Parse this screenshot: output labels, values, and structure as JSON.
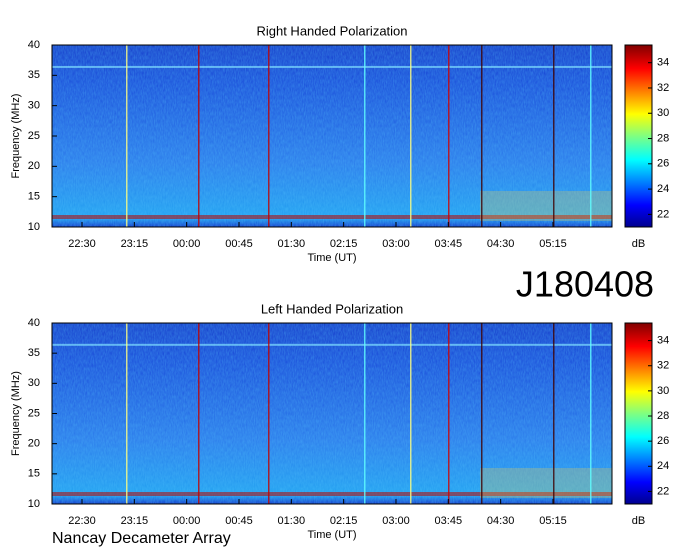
{
  "chart_data": [
    {
      "type": "heatmap",
      "title": "Right Handed Polarization",
      "xlabel": "Time (UT)",
      "ylabel": "Frequency (MHz)",
      "xticks": [
        "22:30",
        "23:15",
        "00:00",
        "00:45",
        "01:30",
        "02:15",
        "03:00",
        "03:45",
        "04:30",
        "05:15"
      ],
      "ylim": [
        10,
        40
      ],
      "yticks": [
        10,
        15,
        20,
        25,
        30,
        35,
        40
      ],
      "colorbar_label": "dB",
      "clim": [
        21,
        35.4
      ],
      "cticks": [
        22,
        24,
        26,
        28,
        30,
        32,
        34
      ]
    },
    {
      "type": "heatmap",
      "title": "Left Handed Polarization",
      "xlabel": "Time (UT)",
      "ylabel": "Frequency (MHz)",
      "xticks": [
        "22:30",
        "23:15",
        "00:00",
        "00:45",
        "01:30",
        "02:15",
        "03:00",
        "03:45",
        "04:30",
        "05:15"
      ],
      "ylim": [
        10,
        40
      ],
      "yticks": [
        10,
        15,
        20,
        25,
        30,
        35,
        40
      ],
      "colorbar_label": "dB",
      "clim": [
        21,
        35.4
      ],
      "cticks": [
        22,
        24,
        26,
        28,
        30,
        32,
        34
      ]
    }
  ],
  "annotations": [
    "J180408",
    "Nancay Decameter Array"
  ]
}
